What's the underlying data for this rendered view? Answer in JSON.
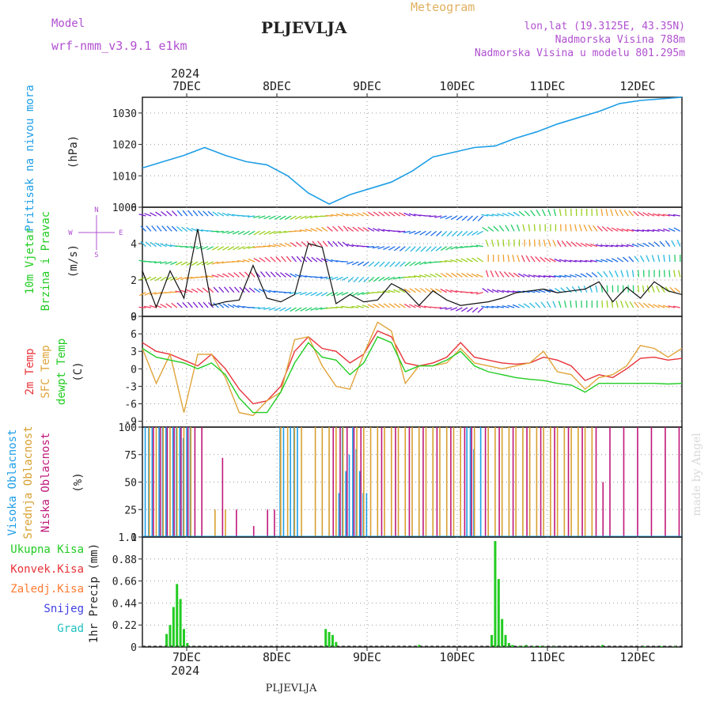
{
  "header": {
    "model_label": "Model",
    "model_name": "wrf-nmm_v3.9.1  e1km",
    "station": "PLJEVLJA",
    "product": "Meteogram",
    "coords": "lon,lat (19.3125E, 43.35N)",
    "elevation": "Nadmorska Visina 788m",
    "model_elevation": "Nadmorska Visina u modelu 801.295m",
    "footer_station": "PLJEVLJA",
    "watermark": "made by Angel"
  },
  "colors": {
    "pressure": "#1e9ee6",
    "t2m": "#e8333a",
    "sfc": "#e0a43a",
    "dewpt": "#22cc22",
    "high_cloud": "#1e9ee6",
    "mid_cloud": "#d8a030",
    "low_cloud": "#c0187a",
    "total_precip": "#22cc22",
    "conv_precip": "#e8333a",
    "frozen_precip": "#ff7a30",
    "snow": "#4040e0",
    "graupel": "#20c0c0",
    "wind_label_green": "#22cc22",
    "wind_label_purple": "#b050d0"
  },
  "chart_data": [
    {
      "type": "line",
      "panel": "pressure",
      "xlabel_top_year": "2024",
      "x_ticks": [
        "7DEC",
        "8DEC",
        "9DEC",
        "10DEC",
        "11DEC",
        "12DEC"
      ],
      "ylabel_left": "Pritisak na nivou mora",
      "ylabel_unit": "(hPa)",
      "ylim": [
        1000,
        1035
      ],
      "y_ticks": [
        "1000",
        "1010",
        "1020",
        "1030"
      ],
      "series": [
        {
          "x": [
            0,
            6,
            12,
            18,
            24,
            30,
            36,
            42,
            48,
            54,
            60,
            66,
            72,
            78,
            84,
            90,
            96,
            102,
            108,
            114,
            120,
            126,
            132,
            138,
            144,
            150,
            156
          ],
          "values": [
            1012.5,
            1014.5,
            1016.5,
            1019.0,
            1016.5,
            1014.5,
            1013.5,
            1010.0,
            1004.5,
            1001.0,
            1004.0,
            1006.0,
            1008.0,
            1011.5,
            1016.0,
            1017.5,
            1019.0,
            1019.5,
            1022.0,
            1024.0,
            1026.5,
            1028.5,
            1030.5,
            1033.0,
            1034.0,
            1034.5,
            1035.0
          ]
        }
      ]
    },
    {
      "type": "line",
      "panel": "wind",
      "ylabel_left": [
        "10m Vjetar",
        "Brzina i Pravac"
      ],
      "ylabel_unit": "(m/s)",
      "compass": [
        "N",
        "E",
        "S",
        "W"
      ],
      "ylim": [
        0,
        6
      ],
      "y_ticks": [
        "0",
        "2",
        "4",
        "6"
      ],
      "series": [
        {
          "name": "speed",
          "x": [
            0,
            4,
            8,
            12,
            16,
            20,
            24,
            28,
            32,
            36,
            40,
            44,
            48,
            52,
            56,
            60,
            64,
            68,
            72,
            76,
            80,
            84,
            88,
            92,
            96,
            100,
            104,
            108,
            112,
            116,
            120,
            124,
            128,
            132,
            136,
            140,
            144,
            148,
            152,
            156
          ],
          "values": [
            2.5,
            0.5,
            2.5,
            1.0,
            4.8,
            0.6,
            0.8,
            0.9,
            2.8,
            1.0,
            0.8,
            1.2,
            4.0,
            3.8,
            0.7,
            1.2,
            0.8,
            0.9,
            1.8,
            1.4,
            0.6,
            1.4,
            0.9,
            0.6,
            0.7,
            0.8,
            1.0,
            1.3,
            1.4,
            1.5,
            1.3,
            1.4,
            1.5,
            1.9,
            0.8,
            1.6,
            1.0,
            1.9,
            1.4,
            1.2
          ]
        }
      ]
    },
    {
      "type": "line",
      "panel": "temperature",
      "ylabel_left": [
        "2m Temp",
        "SFC Temp",
        "dewpt Temp"
      ],
      "ylabel_unit": "(C)",
      "ylim": [
        -10,
        9
      ],
      "y_ticks": [
        "-9",
        "-6",
        "-3",
        "0",
        "3",
        "6",
        "9"
      ],
      "x": [
        0,
        4,
        8,
        12,
        16,
        20,
        24,
        28,
        32,
        36,
        40,
        44,
        48,
        52,
        56,
        60,
        64,
        68,
        72,
        76,
        80,
        84,
        88,
        92,
        96,
        100,
        104,
        108,
        112,
        116,
        120,
        124,
        128,
        132,
        136,
        140,
        144,
        148,
        152,
        156
      ],
      "series": [
        {
          "name": "2m Temp",
          "values": [
            4.5,
            3.0,
            2.5,
            1.5,
            0.5,
            2.5,
            0.0,
            -3.5,
            -6.0,
            -5.5,
            -3.0,
            3.0,
            5.5,
            3.5,
            3.0,
            1.0,
            2.5,
            6.5,
            5.5,
            1.0,
            0.5,
            1.0,
            2.0,
            4.5,
            2.0,
            1.5,
            1.0,
            0.8,
            1.0,
            2.0,
            1.5,
            0.5,
            -2.0,
            -1.0,
            -1.5,
            0.0,
            1.8,
            2.0,
            1.5,
            1.8
          ]
        },
        {
          "name": "SFC Temp",
          "values": [
            3.5,
            -2.5,
            2.5,
            -7.5,
            2.5,
            2.5,
            -1.5,
            -7.5,
            -8.0,
            -5.5,
            -4.0,
            5.0,
            5.5,
            0.5,
            -3.0,
            -3.5,
            2.5,
            8.0,
            6.5,
            -2.5,
            0.5,
            0.5,
            1.0,
            3.5,
            1.0,
            0.5,
            0.0,
            0.5,
            1.0,
            3.0,
            -0.5,
            -1.0,
            -3.5,
            -1.5,
            -1.0,
            0.5,
            4.0,
            3.5,
            2.0,
            3.5
          ]
        },
        {
          "name": "dewpt Temp",
          "values": [
            3.5,
            2.0,
            1.5,
            1.0,
            0.0,
            1.0,
            -1.0,
            -5.0,
            -7.5,
            -7.5,
            -4.0,
            1.0,
            4.5,
            2.0,
            1.5,
            -1.0,
            1.0,
            5.5,
            4.5,
            -0.5,
            0.5,
            0.5,
            1.5,
            3.0,
            0.5,
            -0.5,
            -1.0,
            -1.5,
            -1.8,
            -2.0,
            -2.5,
            -2.8,
            -4.0,
            -2.5,
            -2.5,
            -2.5,
            -2.5,
            -2.5,
            -2.6,
            -2.5
          ]
        }
      ]
    },
    {
      "type": "bar",
      "panel": "clouds",
      "ylabel_left": [
        "Visoka Oblacnost",
        "Srednja Oblacnost",
        "Niska Oblacnost"
      ],
      "ylabel_unit": "(%)",
      "ylim": [
        0,
        100
      ],
      "y_ticks": [
        "0",
        "25",
        "50",
        "75",
        "100"
      ],
      "series": [
        {
          "name": "Visoka Oblacnost",
          "x": [
            1,
            2,
            3,
            5,
            6,
            7,
            9,
            10,
            11,
            12,
            13,
            14,
            40,
            41,
            43,
            44,
            45,
            57,
            58,
            59,
            60,
            61,
            62,
            63,
            64,
            65,
            94,
            95,
            96,
            98
          ],
          "values": [
            100,
            100,
            100,
            100,
            100,
            100,
            100,
            100,
            100,
            90,
            100,
            100,
            100,
            100,
            100,
            100,
            100,
            40,
            100,
            60,
            75,
            100,
            80,
            60,
            40,
            40,
            100,
            100,
            80,
            100
          ]
        },
        {
          "name": "Srednja Oblacnost",
          "x": [
            2,
            4,
            6,
            8,
            10,
            12,
            14,
            21,
            24,
            40,
            42,
            44,
            46,
            50,
            52,
            54,
            56,
            58,
            62,
            64,
            66,
            68,
            70,
            72,
            74,
            76,
            78,
            80,
            82,
            84,
            86,
            88,
            90,
            92,
            96,
            100,
            102,
            104,
            106,
            108,
            110,
            112,
            114,
            116,
            118,
            120,
            122,
            124,
            126,
            128,
            130
          ],
          "values": [
            100,
            100,
            100,
            100,
            100,
            100,
            100,
            25,
            25,
            100,
            100,
            100,
            100,
            100,
            100,
            100,
            100,
            100,
            100,
            100,
            100,
            100,
            100,
            100,
            100,
            100,
            100,
            100,
            100,
            100,
            100,
            100,
            100,
            100,
            100,
            100,
            100,
            100,
            100,
            100,
            100,
            100,
            100,
            100,
            100,
            100,
            100,
            100,
            100,
            100,
            100
          ]
        },
        {
          "name": "Niska Oblacnost",
          "x": [
            3,
            5,
            7,
            9,
            11,
            13,
            15,
            17,
            23,
            27,
            32,
            36,
            38,
            55,
            57,
            59,
            61,
            63,
            69,
            73,
            77,
            81,
            85,
            89,
            93,
            95,
            99,
            103,
            107,
            111,
            115,
            119,
            123,
            127,
            131,
            133,
            135,
            139,
            143,
            147,
            151,
            155
          ],
          "values": [
            100,
            100,
            100,
            100,
            100,
            100,
            100,
            100,
            72,
            25,
            10,
            25,
            25,
            100,
            100,
            100,
            100,
            100,
            100,
            100,
            100,
            100,
            100,
            100,
            100,
            100,
            100,
            100,
            100,
            100,
            100,
            100,
            100,
            100,
            100,
            50,
            100,
            100,
            100,
            100,
            100,
            100
          ]
        }
      ]
    },
    {
      "type": "bar",
      "panel": "precipitation",
      "legend": [
        "Ukupna Kisa",
        "Konvek.Kisa",
        "Zaledj.Kisa",
        "Snijeg",
        "Grad"
      ],
      "ylabel_unit": "1hr Precip (mm)",
      "ylim": [
        0,
        1.1
      ],
      "y_ticks": [
        "0",
        "0.22",
        "0.44",
        "0.66",
        "0.88",
        "1.1"
      ],
      "x_ticks": [
        "7DEC",
        "8DEC",
        "9DEC",
        "10DEC",
        "11DEC",
        "12DEC"
      ],
      "xlabel_bottom_year": "2024",
      "series": [
        {
          "name": "Ukupna Kisa",
          "x": [
            7,
            8,
            9,
            10,
            11,
            12,
            13,
            53,
            54,
            55,
            56,
            80,
            101,
            102,
            103,
            104,
            105,
            106,
            107,
            109,
            110,
            111,
            113,
            115,
            116,
            119,
            133,
            145,
            150,
            154
          ],
          "values": [
            0.13,
            0.22,
            0.4,
            0.63,
            0.48,
            0.18,
            0.04,
            0.18,
            0.15,
            0.12,
            0.05,
            0.02,
            0.12,
            1.06,
            0.68,
            0.28,
            0.12,
            0.04,
            0.02,
            0.01,
            0.01,
            0.02,
            0.01,
            0.01,
            0.01,
            0.01,
            0.02,
            0.01,
            0.01,
            0.01
          ]
        }
      ]
    }
  ]
}
